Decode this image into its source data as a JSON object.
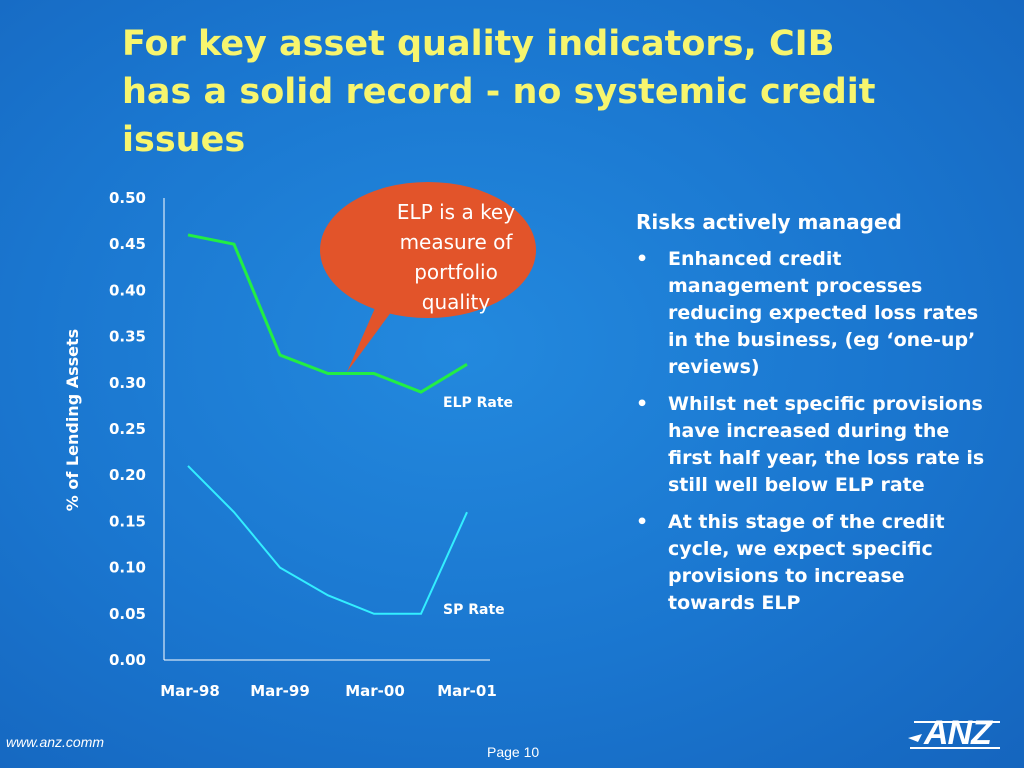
{
  "title_lines": [
    "For key asset quality indicators, CIB",
    "has a solid record - no systemic credit",
    "issues"
  ],
  "chart_data": {
    "type": "line",
    "ylabel": "% of Lending Assets",
    "xlabel": "",
    "ylim": [
      0,
      0.5
    ],
    "yticks": [
      "0.50",
      "0.45",
      "0.40",
      "0.35",
      "0.30",
      "0.25",
      "0.20",
      "0.15",
      "0.10",
      "0.05",
      "0.00"
    ],
    "x_tick_labels": [
      "Mar-98",
      "Mar-99",
      "Mar-00",
      "Mar-01"
    ],
    "x": [
      0,
      1,
      2,
      3,
      4,
      5,
      6
    ],
    "series": [
      {
        "name": "ELP Rate",
        "color": "#22ee44",
        "values": [
          0.46,
          0.45,
          0.33,
          0.31,
          0.31,
          0.29,
          0.32
        ]
      },
      {
        "name": "SP Rate",
        "color": "#33eeff",
        "values": [
          0.21,
          0.16,
          0.1,
          0.07,
          0.05,
          0.05,
          0.16
        ]
      }
    ]
  },
  "callout": {
    "lines": [
      "ELP is a key",
      "measure of",
      "portfolio",
      "quality"
    ],
    "color": "#e2542a"
  },
  "risks": {
    "heading": "Risks actively managed",
    "bullet_char": "•",
    "items": [
      "Enhanced credit management processes reducing expected loss rates in the business, (eg ‘one-up’ reviews)",
      "Whilst net specific provisions have increased during the first half year, the loss rate is still well below ELP rate",
      "At this stage of the credit cycle, we expect specific provisions to increase towards ELP"
    ]
  },
  "footer": {
    "url": "www.anz.comm",
    "page": "Page 10",
    "logo_text": "ANZ"
  }
}
